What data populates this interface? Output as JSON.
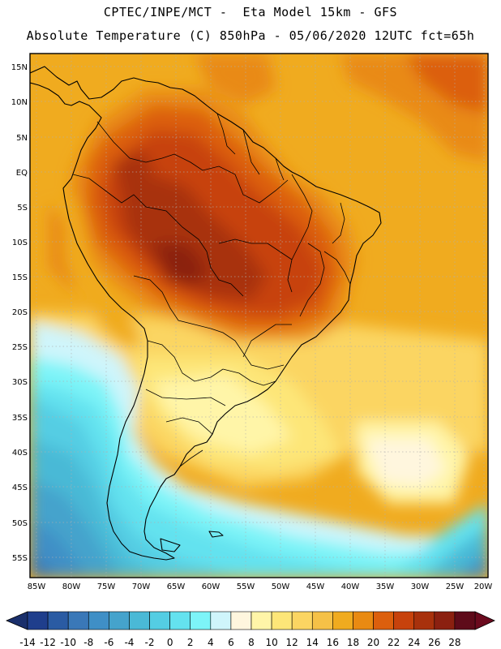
{
  "title": {
    "line1": "CPTEC/INPE/MCT -  Eta Model 15km - GFS",
    "line2": "Absolute Temperature (C) 850hPa - 05/06/2020 12UTC fct=65h"
  },
  "map": {
    "lat_labels": [
      "15N",
      "10N",
      "5N",
      "EQ",
      "5S",
      "10S",
      "15S",
      "20S",
      "25S",
      "30S",
      "35S",
      "40S",
      "45S",
      "50S",
      "55S"
    ],
    "lon_labels": [
      "85W",
      "80W",
      "75W",
      "70W",
      "65W",
      "60W",
      "55W",
      "50W",
      "45W",
      "40W",
      "35W",
      "30W",
      "25W",
      "20W"
    ]
  },
  "colorbar": {
    "labels": [
      "-14",
      "-12",
      "-10",
      "-8",
      "-6",
      "-4",
      "-2",
      "0",
      "2",
      "4",
      "6",
      "8",
      "10",
      "12",
      "14",
      "16",
      "18",
      "20",
      "22",
      "24",
      "26",
      "28"
    ],
    "colors": [
      "#1f3e8c",
      "#2a5ba3",
      "#3a78b8",
      "#3f8fc6",
      "#45a3cc",
      "#4ab9d6",
      "#54cde3",
      "#64e2ef",
      "#7df4f8",
      "#cff5fb",
      "#fff6de",
      "#fff5a8",
      "#fde678",
      "#fbd562",
      "#f5c147",
      "#f0ab1f",
      "#e98a12",
      "#dc5f0d",
      "#c7420c",
      "#a8310c",
      "#8b2010",
      "#5e0b1a"
    ],
    "low_arrow_color": "#1a2f6b",
    "high_arrow_color": "#6b0a1e"
  }
}
